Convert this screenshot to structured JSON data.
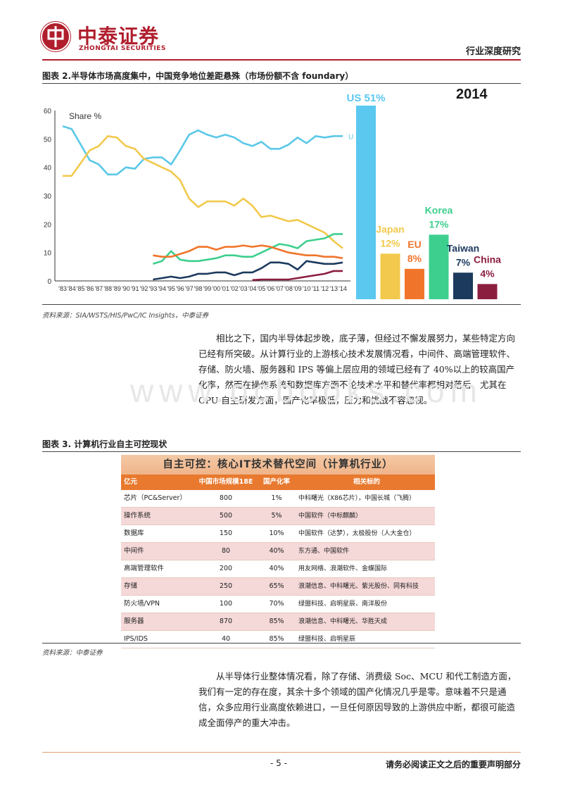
{
  "header": {
    "logo_cn": "中泰证券",
    "logo_en": "ZHONGTAI SECURITIES",
    "report_type": "行业深度研究"
  },
  "figure2": {
    "title": "图表 2.半导体市场高度集中，中国竞争地位差距悬殊（市场份额不含 foundary）",
    "source": "资料来源：SIA/WSTS/HIS/PwC/IC Insights，中泰证券"
  },
  "chart_data": [
    {
      "type": "line",
      "ylabel": "Share %",
      "ylim": [
        0,
        60
      ],
      "yticks": [
        0,
        10,
        20,
        30,
        40,
        50,
        60
      ],
      "x": [
        "'83",
        "'84",
        "'85",
        "'86",
        "'87",
        "'88",
        "'89",
        "'90",
        "'91",
        "'92",
        "'93",
        "'94",
        "'95",
        "'96",
        "'97",
        "'98",
        "'99",
        "'00",
        "'01",
        "'02",
        "'03",
        "'04",
        "'05",
        "'06",
        "'07",
        "'08",
        "'09",
        "'10",
        "'11",
        "'12",
        "'13",
        "'14"
      ],
      "series": [
        {
          "color": "#5bc8e8",
          "end_label": "U",
          "values": [
            54.5,
            53.5,
            48,
            42.5,
            41,
            37.5,
            37.5,
            40,
            39.5,
            43,
            43.5,
            43.5,
            41,
            46,
            51.5,
            53,
            51.5,
            50.5,
            51.5,
            50.5,
            48.5,
            47.5,
            49,
            46.5,
            46.5,
            48,
            50.5,
            48.5,
            51,
            50.5,
            51,
            51
          ]
        },
        {
          "color": "#f2c94c",
          "values": [
            37,
            37,
            41.5,
            46,
            47.5,
            51,
            50.5,
            47.5,
            46.5,
            43,
            41.5,
            40,
            38.5,
            35.5,
            29,
            26,
            28,
            28,
            28,
            26.5,
            29,
            26.5,
            22.5,
            23,
            22,
            21,
            21.5,
            20,
            18.5,
            17,
            14,
            11.5
          ]
        },
        {
          "color": "#3dcf8e",
          "values": [
            null,
            null,
            null,
            null,
            null,
            null,
            null,
            null,
            null,
            null,
            6,
            7,
            10.5,
            7.5,
            7,
            7,
            7.5,
            8,
            9,
            9,
            8.5,
            8.5,
            10,
            11.5,
            13,
            12.5,
            11.5,
            14,
            14.5,
            15,
            16.5,
            16.5
          ]
        },
        {
          "color": "#f0752a",
          "values": [
            null,
            null,
            null,
            null,
            null,
            null,
            null,
            null,
            null,
            null,
            9,
            8.5,
            8.5,
            9.5,
            10.5,
            12,
            12,
            11,
            12,
            12,
            12.5,
            12,
            12.5,
            12,
            11,
            10,
            9.5,
            9,
            9,
            8.5,
            8.5,
            8
          ]
        },
        {
          "color": "#1c3a5e",
          "values": [
            null,
            null,
            null,
            null,
            null,
            null,
            null,
            null,
            null,
            null,
            0.5,
            1,
            1.5,
            1,
            1.5,
            2.5,
            2.5,
            3,
            3,
            2,
            3,
            3,
            4.5,
            6.5,
            6.5,
            6,
            4,
            7,
            6.5,
            6,
            6,
            6.5
          ]
        },
        {
          "color": "#8b1e3f",
          "values": [
            null,
            null,
            null,
            null,
            null,
            null,
            null,
            null,
            null,
            null,
            null,
            null,
            null,
            null,
            null,
            null,
            null,
            null,
            null,
            null,
            null,
            0.3,
            0.5,
            0.5,
            0.5,
            0.5,
            1,
            1.5,
            2,
            2.5,
            3.5,
            3.5
          ]
        }
      ]
    },
    {
      "type": "bar",
      "title": "2014",
      "categories": [
        "US",
        "Japan",
        "EU",
        "Korea",
        "Taiwan",
        "China"
      ],
      "values": [
        51,
        12,
        8,
        17,
        7,
        4
      ],
      "labels": [
        "US 51%",
        "Japan 12%",
        "EU 8%",
        "Korea 17%",
        "Taiwan 7%",
        "China 4%"
      ],
      "colors": [
        "#5bc8f0",
        "#f2c94c",
        "#f0752a",
        "#3dcf8e",
        "#1c3a5e",
        "#8b1e3f"
      ],
      "ylim": [
        0,
        51
      ]
    }
  ],
  "paragraph1": "相比之下，国内半导体起步晚，底子薄，但经过不懈发展努力，某些特定方向已经有所突破。从计算行业的上游核心技术发展情况看，中间件、高端管理软件、存储、防火墙、服务器和 IPS 等偏上层应用的领域已经有了 40%以上的较高国产化率，然而在操作系统和数据库方面不论技术水平和替代率都相对落后，尤其在 CPU 自主研发方面，国产化率极低，压力和挑战不容忽视。",
  "figure3": {
    "title": "图表 3. 计算机行业自主可控现状",
    "source": "资料来源：中泰证券",
    "table_title": "自主可控：核心IT技术替代空间（计算机行业）",
    "columns": [
      "亿元",
      "中国市场规模18E",
      "国产化率",
      "相关标的"
    ],
    "rows": [
      [
        "芯片（PC&Server）",
        "800",
        "1%",
        "中科曙光（X86芯片），中国长城（飞腾）"
      ],
      [
        "操作系统",
        "500",
        "5%",
        "中国软件（中标麒麟）"
      ],
      [
        "数据库",
        "150",
        "10%",
        "中国软件（达梦），太极股份（人大金仓）"
      ],
      [
        "中间件",
        "80",
        "40%",
        "东方通、中国软件"
      ],
      [
        "高端管理软件",
        "200",
        "40%",
        "用友网络、浪潮软件、金蝶国际"
      ],
      [
        "存储",
        "250",
        "65%",
        "浪潮信息、中科曙光、紫光股份、同有科技"
      ],
      [
        "防火墙/VPN",
        "100",
        "70%",
        "绿盟科技、启明星辰、南洋股份"
      ],
      [
        "服务器",
        "870",
        "85%",
        "浪潮信息、中科曙光、华胜天成"
      ],
      [
        "IPS/IDS",
        "40",
        "85%",
        "绿盟科技、启明星辰"
      ]
    ]
  },
  "paragraph2": "从半导体行业整体情况看，除了存储、消费级 Soc、MCU 和代工制造方面，我们有一定的存在度，其余十多个领域的国产化情况几乎是零。意味着不只是通信，众多应用行业高度依赖进口，一旦任何原因导致的上游供应中断，都很可能造成全面停产的重大冲击。",
  "footer": {
    "page": "- 5 -",
    "disclaimer": "请务必阅读正文之后的重要声明部分"
  },
  "watermark": "www.ocbooks.com"
}
